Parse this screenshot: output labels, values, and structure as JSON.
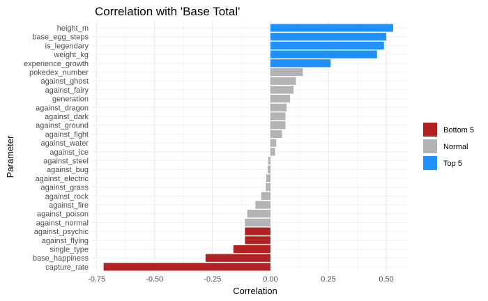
{
  "chart_data": {
    "type": "bar",
    "orientation": "horizontal",
    "title": "Correlation with 'Base Total'",
    "xlabel": "Correlation",
    "ylabel": "Parameter",
    "xlim": [
      -0.77,
      0.59
    ],
    "x_ticks": [
      -0.75,
      -0.5,
      -0.25,
      0.0,
      0.25,
      0.5
    ],
    "x_tick_labels": [
      "-0.75",
      "-0.50",
      "-0.25",
      "0.00",
      "0.25",
      "0.50"
    ],
    "grid": true,
    "legend_position": "right",
    "legend": [
      {
        "key": "bottom5",
        "label": "Bottom 5",
        "color": "#b22222"
      },
      {
        "key": "normal",
        "label": "Normal",
        "color": "#b3b3b3"
      },
      {
        "key": "top5",
        "label": "Top 5",
        "color": "#1e90ff"
      }
    ],
    "bars": [
      {
        "label": "height_m",
        "value": 0.53,
        "group": "top5"
      },
      {
        "label": "base_egg_steps",
        "value": 0.5,
        "group": "top5"
      },
      {
        "label": "is_legendary",
        "value": 0.49,
        "group": "top5"
      },
      {
        "label": "weight_kg",
        "value": 0.46,
        "group": "top5"
      },
      {
        "label": "experience_growth",
        "value": 0.26,
        "group": "top5"
      },
      {
        "label": "pokedex_number",
        "value": 0.14,
        "group": "normal"
      },
      {
        "label": "against_ghost",
        "value": 0.11,
        "group": "normal"
      },
      {
        "label": "against_fairy",
        "value": 0.1,
        "group": "normal"
      },
      {
        "label": "generation",
        "value": 0.085,
        "group": "normal"
      },
      {
        "label": "against_dragon",
        "value": 0.07,
        "group": "normal"
      },
      {
        "label": "against_dark",
        "value": 0.065,
        "group": "normal"
      },
      {
        "label": "against_ground",
        "value": 0.065,
        "group": "normal"
      },
      {
        "label": "against_fight",
        "value": 0.05,
        "group": "normal"
      },
      {
        "label": "against_water",
        "value": 0.025,
        "group": "normal"
      },
      {
        "label": "against_ice",
        "value": 0.02,
        "group": "normal"
      },
      {
        "label": "against_steel",
        "value": -0.01,
        "group": "normal"
      },
      {
        "label": "against_bug",
        "value": -0.012,
        "group": "normal"
      },
      {
        "label": "against_electric",
        "value": -0.018,
        "group": "normal"
      },
      {
        "label": "against_grass",
        "value": -0.02,
        "group": "normal"
      },
      {
        "label": "against_rock",
        "value": -0.04,
        "group": "normal"
      },
      {
        "label": "against_fire",
        "value": -0.065,
        "group": "normal"
      },
      {
        "label": "against_poison",
        "value": -0.1,
        "group": "normal"
      },
      {
        "label": "against_normal",
        "value": -0.11,
        "group": "normal"
      },
      {
        "label": "against_psychic",
        "value": -0.11,
        "group": "bottom5"
      },
      {
        "label": "against_flying",
        "value": -0.11,
        "group": "bottom5"
      },
      {
        "label": "single_type",
        "value": -0.16,
        "group": "bottom5"
      },
      {
        "label": "base_happiness",
        "value": -0.28,
        "group": "bottom5"
      },
      {
        "label": "capture_rate",
        "value": -0.72,
        "group": "bottom5"
      }
    ]
  }
}
